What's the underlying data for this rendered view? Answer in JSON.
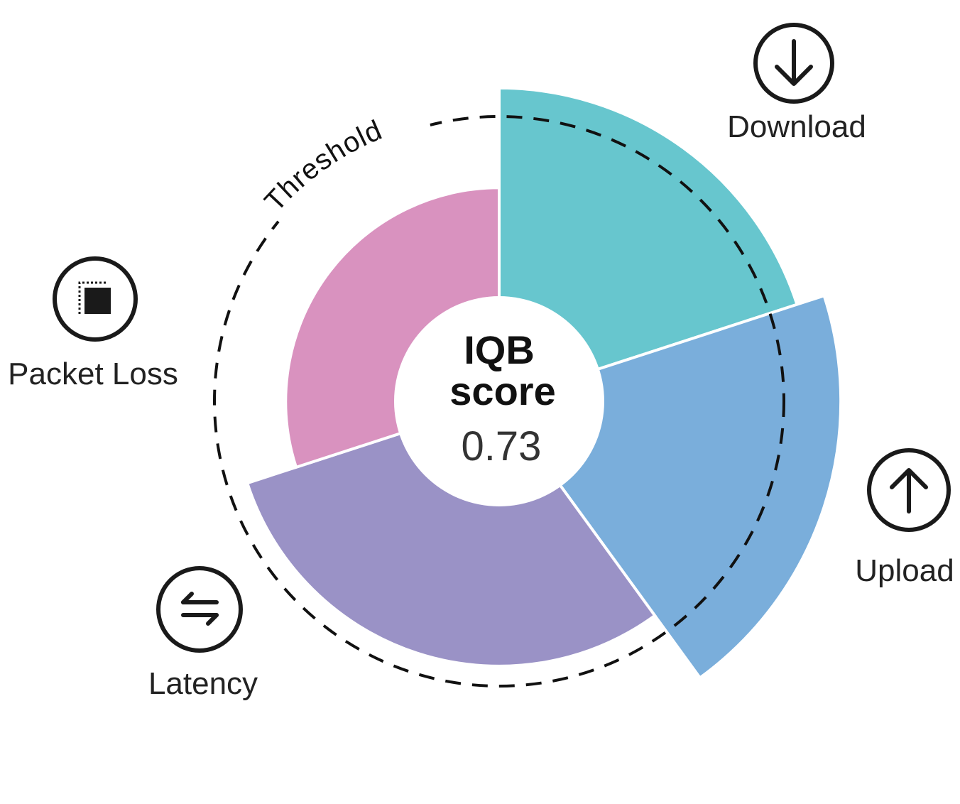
{
  "chart_data": {
    "type": "polar-area",
    "title_line1": "IQB",
    "title_line2": "score",
    "score": "0.73",
    "threshold_label": "Threshold",
    "threshold": 1.0,
    "colors": {
      "Download": "#67c6ce",
      "Upload": "#7aaedb",
      "Latency": "#9a92c6",
      "Packet Loss": "#d992bf",
      "threshold_line": "#111111"
    },
    "categories": [
      "Download",
      "Upload",
      "Latency",
      "Packet Loss"
    ],
    "values": [
      1.1,
      1.2,
      0.93,
      0.75
    ],
    "icons": [
      "download-arrow-icon",
      "upload-arrow-icon",
      "latency-arrows-icon",
      "packet-loss-icon"
    ]
  }
}
